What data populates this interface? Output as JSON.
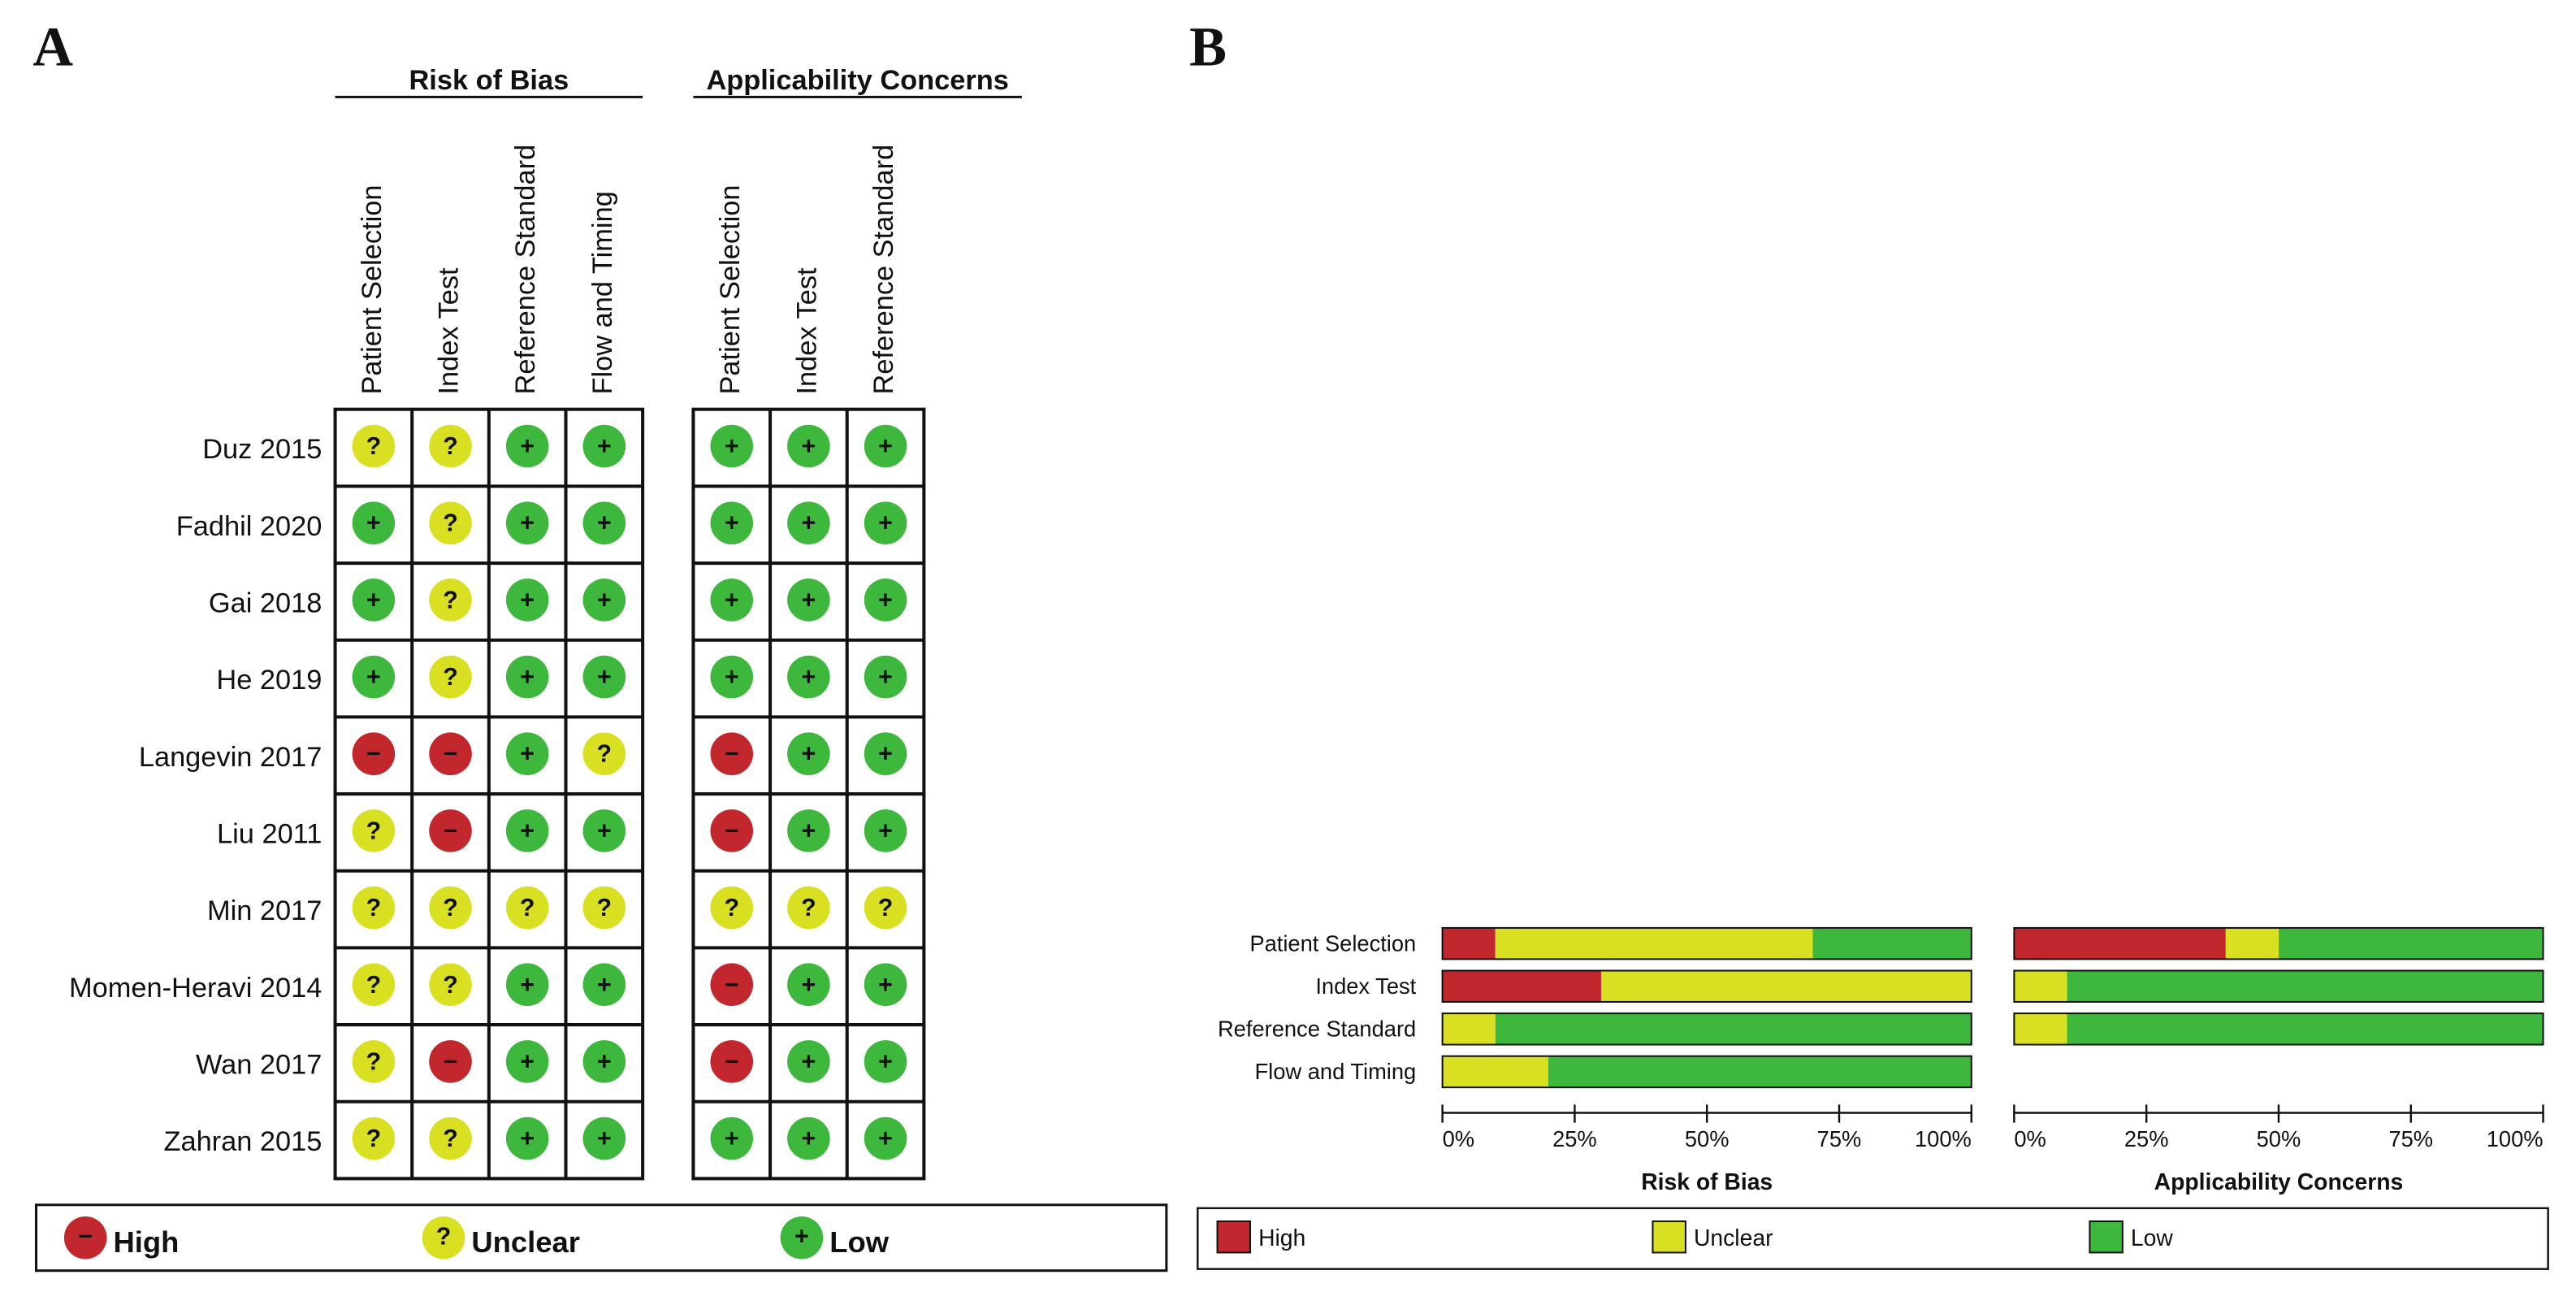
{
  "panel_a": {
    "label": "A",
    "groups": [
      {
        "title": "Risk of Bias",
        "columns": [
          "Patient Selection",
          "Index Test",
          "Reference Standard",
          "Flow and Timing"
        ]
      },
      {
        "title": "Applicability Concerns",
        "columns": [
          "Patient Selection",
          "Index Test",
          "Reference Standard"
        ]
      }
    ],
    "studies": [
      "Duz 2015",
      "Fadhil 2020",
      "Gai 2018",
      "He 2019",
      "Langevin 2017",
      "Liu 2011",
      "Min 2017",
      "Momen-Heravi 2014",
      "Wan 2017",
      "Zahran 2015"
    ],
    "judgements": [
      [
        "?",
        "?",
        "+",
        "+",
        "+",
        "+",
        "+"
      ],
      [
        "+",
        "?",
        "+",
        "+",
        "+",
        "+",
        "+"
      ],
      [
        "+",
        "?",
        "+",
        "+",
        "+",
        "+",
        "+"
      ],
      [
        "+",
        "?",
        "+",
        "+",
        "+",
        "+",
        "+"
      ],
      [
        "−",
        "−",
        "+",
        "?",
        "−",
        "+",
        "+"
      ],
      [
        "?",
        "−",
        "+",
        "+",
        "−",
        "+",
        "+"
      ],
      [
        "?",
        "?",
        "?",
        "?",
        "?",
        "?",
        "?"
      ],
      [
        "?",
        "?",
        "+",
        "+",
        "−",
        "+",
        "+"
      ],
      [
        "?",
        "−",
        "+",
        "+",
        "−",
        "+",
        "+"
      ],
      [
        "?",
        "?",
        "+",
        "+",
        "+",
        "+",
        "+"
      ]
    ],
    "legend": [
      {
        "symbol": "−",
        "label": "High",
        "color": "#c1272d"
      },
      {
        "symbol": "?",
        "label": "Unclear",
        "color": "#d9e021"
      },
      {
        "symbol": "+",
        "label": "Low",
        "color": "#3db83d"
      }
    ]
  },
  "panel_b_label": "B",
  "chart_data": [
    {
      "type": "bar",
      "orientation": "horizontal",
      "stacked": true,
      "title": "Risk of Bias",
      "categories": [
        "Patient Selection",
        "Index Test",
        "Reference Standard",
        "Flow and Timing"
      ],
      "series": [
        {
          "name": "High",
          "color": "#c1272d",
          "values": [
            10,
            30,
            0,
            0
          ]
        },
        {
          "name": "Unclear",
          "color": "#d9e021",
          "values": [
            60,
            70,
            10,
            20
          ]
        },
        {
          "name": "Low",
          "color": "#3db83d",
          "values": [
            30,
            0,
            90,
            80
          ]
        }
      ],
      "xlim": [
        0,
        100
      ],
      "xticks": [
        {
          "value": 0,
          "label": "0%"
        },
        {
          "value": 25,
          "label": "25%"
        },
        {
          "value": 50,
          "label": "50%"
        },
        {
          "value": 75,
          "label": "75%"
        },
        {
          "value": 100,
          "label": "100%"
        }
      ]
    },
    {
      "type": "bar",
      "orientation": "horizontal",
      "stacked": true,
      "title": "Applicability Concerns",
      "categories": [
        null,
        null,
        null
      ],
      "series": [
        {
          "name": "High",
          "color": "#c1272d",
          "values": [
            40,
            0,
            0
          ]
        },
        {
          "name": "Unclear",
          "color": "#d9e021",
          "values": [
            10,
            10,
            10
          ]
        },
        {
          "name": "Low",
          "color": "#3db83d",
          "values": [
            50,
            90,
            90
          ]
        }
      ],
      "xlim": [
        0,
        100
      ],
      "xticks": [
        {
          "value": 0,
          "label": "0%"
        },
        {
          "value": 25,
          "label": "25%"
        },
        {
          "value": 50,
          "label": "50%"
        },
        {
          "value": 75,
          "label": "75%"
        },
        {
          "value": 100,
          "label": "100%"
        }
      ]
    }
  ]
}
